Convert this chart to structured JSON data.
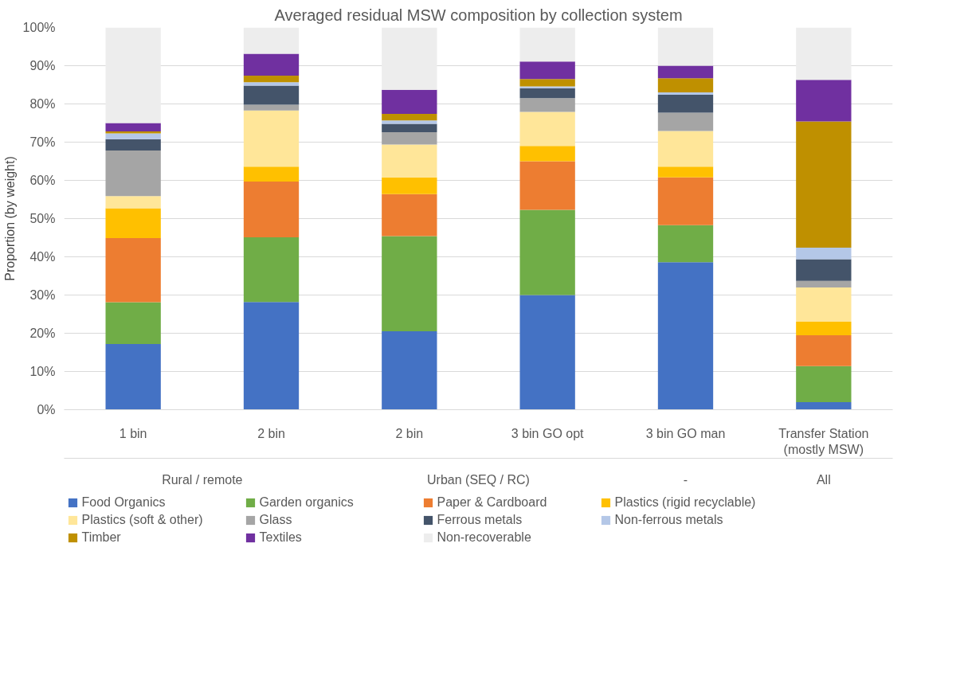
{
  "chart_data": {
    "type": "bar",
    "stacked": true,
    "title": "Averaged residual MSW composition by collection system",
    "ylabel": "Proportion (by weight)",
    "categories": [
      "1 bin",
      "2 bin",
      "2 bin",
      "3 bin GO opt",
      "3 bin GO man",
      "Transfer Station (mostly MSW)"
    ],
    "annotations": [
      "Rural / remote",
      "Urban (SEQ / RC)",
      "-",
      "All"
    ],
    "ylim": [
      0,
      100
    ],
    "yticks": [
      {
        "value": 0,
        "label": "0%"
      },
      {
        "value": 10,
        "label": "10%"
      },
      {
        "value": 20,
        "label": "20%"
      },
      {
        "value": 30,
        "label": "30%"
      },
      {
        "value": 40,
        "label": "40%"
      },
      {
        "value": 50,
        "label": "50%"
      },
      {
        "value": 60,
        "label": "60%"
      },
      {
        "value": 70,
        "label": "70%"
      },
      {
        "value": 80,
        "label": "80%"
      },
      {
        "value": 90,
        "label": "90%"
      },
      {
        "value": 100,
        "label": "100%"
      }
    ],
    "grid": "y",
    "legend": "bottom",
    "series": [
      {
        "name": "Food Organics",
        "color": "#4472c4",
        "values": [
          17.2,
          28.2,
          20.5,
          30.0,
          38.6,
          2.0
        ]
      },
      {
        "name": "Garden organics",
        "color": "#70ad47",
        "values": [
          10.9,
          16.9,
          24.9,
          22.3,
          9.7,
          9.4
        ]
      },
      {
        "name": "Paper & Cardboard",
        "color": "#ed7d31",
        "values": [
          16.8,
          14.6,
          11.0,
          12.7,
          12.5,
          8.1
        ]
      },
      {
        "name": "Plastics (rigid recyclable)",
        "color": "#ffc000",
        "values": [
          7.8,
          3.9,
          4.4,
          4.0,
          2.8,
          3.5
        ]
      },
      {
        "name": "Plastics (soft & other)",
        "color": "#ffe699",
        "values": [
          3.2,
          14.7,
          8.6,
          8.9,
          9.3,
          9.0
        ]
      },
      {
        "name": "Glass",
        "color": "#a5a5a5",
        "values": [
          11.9,
          1.5,
          3.2,
          3.6,
          4.8,
          1.7
        ]
      },
      {
        "name": "Ferrous metals",
        "color": "#44546a",
        "values": [
          3.0,
          5.0,
          2.2,
          2.6,
          4.7,
          5.7
        ]
      },
      {
        "name": "Non-ferrous metals",
        "color": "#b4c7e7",
        "values": [
          1.5,
          0.9,
          0.9,
          0.5,
          0.6,
          3.0
        ]
      },
      {
        "name": "Timber",
        "color": "#bf9000",
        "values": [
          0.5,
          1.7,
          1.7,
          1.9,
          3.7,
          33.0
        ]
      },
      {
        "name": "Textiles",
        "color": "#7030a0",
        "values": [
          2.2,
          5.7,
          6.3,
          4.6,
          3.3,
          10.9
        ]
      },
      {
        "name": "Non-recoverable",
        "color": "#ededed",
        "values": [
          25.0,
          6.9,
          16.3,
          8.9,
          10.0,
          13.7
        ]
      }
    ]
  }
}
